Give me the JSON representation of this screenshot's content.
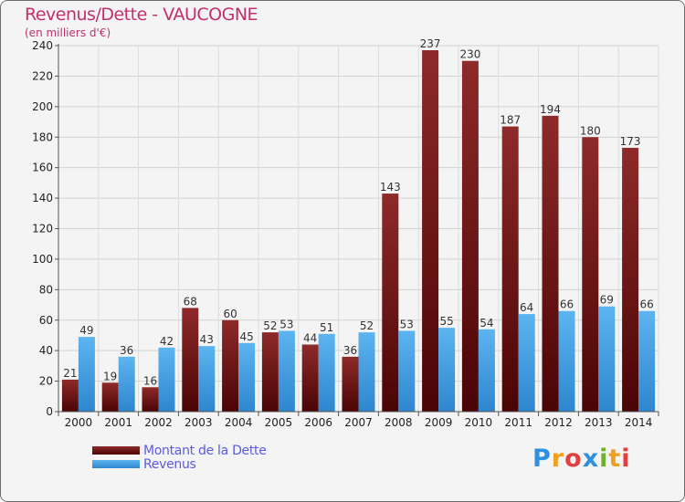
{
  "chart_data": {
    "type": "bar",
    "title": "Revenus/Dette - VAUCOGNE",
    "subtitle": "(en milliers d'€)",
    "categories": [
      "2000",
      "2001",
      "2002",
      "2003",
      "2004",
      "2005",
      "2006",
      "2007",
      "2008",
      "2009",
      "2010",
      "2011",
      "2012",
      "2013",
      "2014"
    ],
    "series": [
      {
        "name": "Montant de la Dette",
        "color": "#7a1a1a",
        "values": [
          21,
          19,
          16,
          68,
          60,
          52,
          44,
          36,
          143,
          237,
          230,
          187,
          194,
          180,
          173
        ]
      },
      {
        "name": "Revenus",
        "color": "#3f9fe0",
        "values": [
          49,
          36,
          42,
          43,
          45,
          53,
          51,
          52,
          53,
          55,
          54,
          64,
          66,
          69,
          66
        ]
      }
    ],
    "ylim": [
      0,
      240
    ],
    "yticks": [
      0,
      20,
      40,
      60,
      80,
      100,
      120,
      140,
      160,
      180,
      200,
      220,
      240
    ],
    "grid": true,
    "legend": "bottom-left"
  },
  "logo": {
    "letters": [
      {
        "ch": "P",
        "color": "#2f8fe0"
      },
      {
        "ch": "r",
        "color": "#f0a020"
      },
      {
        "ch": "o",
        "color": "#e04040"
      },
      {
        "ch": "x",
        "color": "#2f8fe0"
      },
      {
        "ch": "i",
        "color": "#70b030"
      },
      {
        "ch": "t",
        "color": "#f0a020"
      },
      {
        "ch": "i",
        "color": "#e04040"
      }
    ]
  }
}
